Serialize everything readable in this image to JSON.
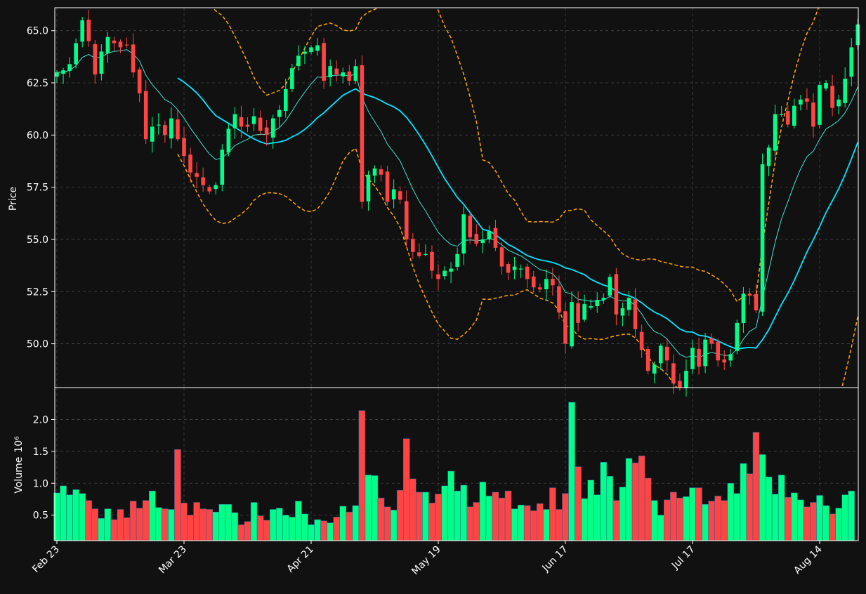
{
  "chart_data": {
    "type": "candlestick",
    "theme": {
      "background": "#111111",
      "text": "#ffffff",
      "up_color": "#00ff88",
      "down_color": "#ff4444",
      "sma_short_color": "#40e0d0",
      "sma_long_color": "#00e5ff",
      "bollinger_color": "#ffa500",
      "grid": "dashed"
    },
    "price_panel": {
      "ylabel": "Price",
      "ylim": [
        47.9,
        66.1
      ],
      "yticks": [
        50.0,
        52.5,
        55.0,
        57.5,
        60.0,
        62.5,
        65.0
      ],
      "ytick_labels": [
        "50.0",
        "52.5",
        "55.0",
        "57.5",
        "60.0",
        "62.5",
        "65.0"
      ]
    },
    "volume_panel": {
      "ylabel": "Volume",
      "ylabel_exponent": "10⁶",
      "ylim": [
        0.1,
        2.5
      ],
      "yticks": [
        0.5,
        1.0,
        1.5,
        2.0
      ],
      "ytick_labels": [
        "0.5",
        "1.0",
        "1.5",
        "2.0"
      ]
    },
    "x_ticks": [
      {
        "index": 0,
        "label": "Feb 23"
      },
      {
        "index": 20,
        "label": "Mar 23"
      },
      {
        "index": 40,
        "label": "Apr 21"
      },
      {
        "index": 60,
        "label": "May 19"
      },
      {
        "index": 80,
        "label": "Jun 17"
      },
      {
        "index": 100,
        "label": "Jul 17"
      },
      {
        "index": 120,
        "label": "Aug 14"
      }
    ],
    "closes": [
      63.0,
      63.1,
      63.4,
      64.4,
      65.5,
      64.5,
      62.9,
      64.0,
      64.7,
      64.4,
      64.2,
      64.3,
      63.0,
      62.0,
      59.8,
      60.4,
      60.5,
      60.0,
      60.8,
      59.8,
      59.0,
      58.2,
      58.0,
      57.6,
      57.3,
      57.6,
      59.3,
      60.3,
      61.0,
      60.4,
      60.4,
      60.9,
      60.2,
      60.0,
      60.8,
      61.2,
      62.2,
      63.2,
      63.8,
      64.0,
      64.2,
      64.3,
      62.6,
      63.3,
      62.9,
      63.0,
      62.6,
      63.3,
      56.8,
      58.1,
      58.4,
      58.1,
      56.8,
      57.4,
      56.9,
      55.0,
      54.4,
      54.2,
      54.3,
      53.5,
      53.1,
      53.5,
      53.6,
      54.3,
      56.2,
      55.1,
      54.8,
      55.0,
      55.4,
      54.6,
      53.7,
      53.4,
      53.7,
      53.6,
      53.1,
      52.7,
      52.6,
      53.1,
      52.8,
      51.5,
      50.0,
      52.0,
      51.0,
      51.9,
      51.8,
      52.1,
      52.2,
      53.2,
      51.4,
      51.7,
      52.2,
      50.7,
      49.7,
      48.7,
      49.0,
      49.9,
      49.2,
      48.1,
      47.9,
      48.7,
      49.8,
      48.9,
      50.2,
      50.0,
      49.2,
      49.1,
      49.5,
      51.0,
      52.4,
      52.3,
      51.6,
      58.6,
      59.4,
      61.0,
      61.0,
      60.5,
      61.4,
      61.7,
      61.6,
      60.4,
      62.4,
      62.5,
      61.3,
      61.7,
      62.7,
      64.2,
      65.3
    ],
    "volumes": [
      0.85,
      0.96,
      0.82,
      0.9,
      0.84,
      0.73,
      0.6,
      0.45,
      0.6,
      0.43,
      0.59,
      0.46,
      0.72,
      0.61,
      0.73,
      0.88,
      0.62,
      0.6,
      0.59,
      1.53,
      0.69,
      0.5,
      0.7,
      0.6,
      0.59,
      0.55,
      0.67,
      0.67,
      0.54,
      0.35,
      0.4,
      0.7,
      0.49,
      0.42,
      0.59,
      0.61,
      0.5,
      0.47,
      0.72,
      0.52,
      0.35,
      0.43,
      0.41,
      0.38,
      0.47,
      0.64,
      0.55,
      0.65,
      2.14,
      1.13,
      1.12,
      0.77,
      0.63,
      0.58,
      0.89,
      1.7,
      1.07,
      0.86,
      0.86,
      0.69,
      0.83,
      0.96,
      1.19,
      0.88,
      0.97,
      0.63,
      0.7,
      1.02,
      0.8,
      0.86,
      0.77,
      0.88,
      0.6,
      0.66,
      0.65,
      0.57,
      0.68,
      0.59,
      0.93,
      0.59,
      0.84,
      2.27,
      1.26,
      0.76,
      1.05,
      0.82,
      1.33,
      1.11,
      0.73,
      0.94,
      1.39,
      1.32,
      1.43,
      1.08,
      0.73,
      0.5,
      0.74,
      0.86,
      0.77,
      0.79,
      0.93,
      0.93,
      0.67,
      0.72,
      0.8,
      0.73,
      1.0,
      0.84,
      1.31,
      1.15,
      1.8,
      1.45,
      1.1,
      0.83,
      1.13,
      0.78,
      0.85,
      0.74,
      0.63,
      0.7,
      0.81,
      0.65,
      0.52,
      0.61,
      0.82,
      0.88
    ]
  }
}
